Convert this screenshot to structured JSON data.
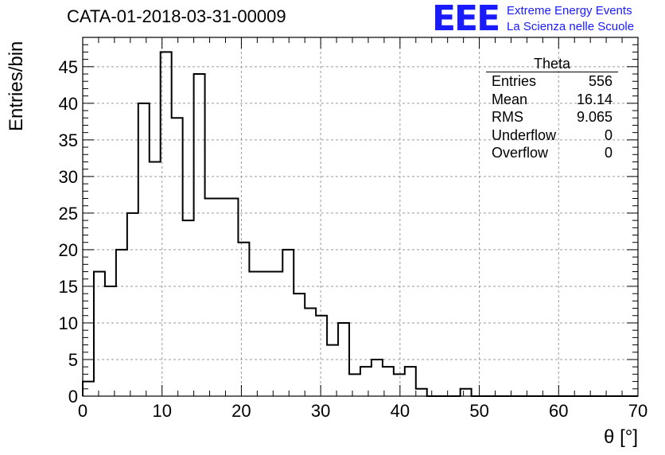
{
  "header": {
    "title": "CATA-01-2018-03-31-00009",
    "logo": "EEE",
    "logo_line1": "Extreme Energy Events",
    "logo_line2": "La Scienza nelle Scuole"
  },
  "stats_box": {
    "title": "Theta",
    "rows": [
      {
        "label": "Entries",
        "value": "556"
      },
      {
        "label": "Mean",
        "value": "16.14"
      },
      {
        "label": "RMS",
        "value": "9.065"
      },
      {
        "label": "Underflow",
        "value": "0"
      },
      {
        "label": "Overflow",
        "value": "0"
      }
    ]
  },
  "colors": {
    "line": "#000000",
    "grid": "#9a9a9a",
    "logo": "#1a1aff"
  },
  "chart_data": {
    "type": "bar",
    "style": "step histogram",
    "title": "CATA-01-2018-03-31-00009",
    "xlabel": "θ [°]",
    "ylabel": "Entries/bin",
    "xlim": [
      0,
      70
    ],
    "ylim": [
      0,
      49
    ],
    "xticks": [
      0,
      10,
      20,
      30,
      40,
      50,
      60,
      70
    ],
    "yticks": [
      0,
      5,
      10,
      15,
      20,
      25,
      30,
      35,
      40,
      45
    ],
    "grid": true,
    "bin_width": 1.4,
    "values": [
      2,
      17,
      15,
      20,
      25,
      40,
      32,
      47,
      38,
      24,
      44,
      27,
      27,
      27,
      21,
      17,
      17,
      17,
      20,
      14,
      12,
      11,
      7,
      10,
      3,
      4,
      5,
      4,
      3,
      4,
      1,
      0,
      0,
      0,
      1,
      0,
      0,
      0,
      0,
      0,
      0,
      0,
      0,
      0,
      0,
      0,
      0,
      0,
      0,
      0
    ]
  }
}
